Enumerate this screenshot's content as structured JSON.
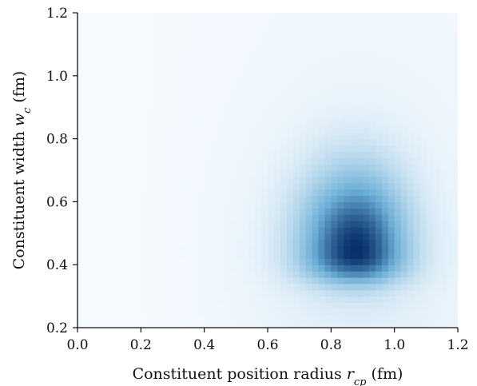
{
  "chart_data": {
    "type": "heatmap",
    "title": "",
    "xlabel": {
      "text": "Constituent position radius ",
      "var": "r",
      "sub": "cp",
      "unit": " (fm)"
    },
    "ylabel": {
      "text": "Constituent width ",
      "var": "w",
      "sub": "c",
      "unit": " (fm)"
    },
    "xlim": [
      0.0,
      1.2
    ],
    "ylim": [
      0.2,
      1.2
    ],
    "xticks": [
      "0.0",
      "0.2",
      "0.4",
      "0.6",
      "0.8",
      "1.0",
      "1.2"
    ],
    "yticks": [
      "0.2",
      "0.4",
      "0.6",
      "0.8",
      "1.0",
      "1.2"
    ],
    "colormap": {
      "low": "#f7fbff",
      "mid": "#6baed6",
      "high": "#08306b"
    },
    "density_peak": {
      "x": 0.88,
      "y": 0.44
    },
    "grid": false,
    "legend": "none"
  }
}
